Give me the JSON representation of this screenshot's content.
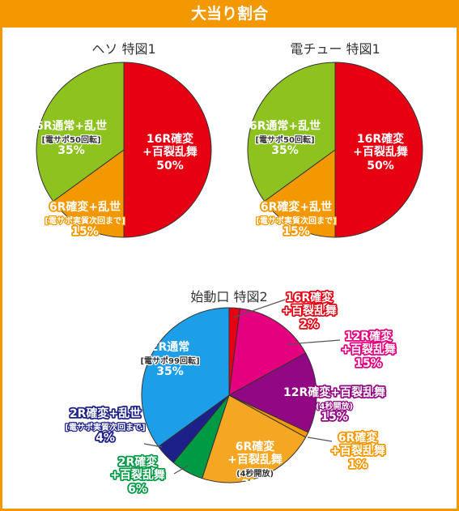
{
  "header": {
    "title": "大当り割合"
  },
  "colors": {
    "frame": "#f39800",
    "red": "#e60012",
    "green": "#8dc21f",
    "orange": "#f39800",
    "blue": "#1d9ee8",
    "pink": "#e4007f",
    "purple": "#920783",
    "lightorange": "#f5a623",
    "darkgreen": "#009944",
    "navy": "#1d2088"
  },
  "chart_data": [
    {
      "type": "pie",
      "title": "ヘソ 特図1",
      "slices": [
        {
          "lines": [
            "16R確変",
            "+百裂乱舞"
          ],
          "pct": "50%",
          "value": 50,
          "color": "#e60012"
        },
        {
          "lines": [
            "6R確変+乱世",
            "[電サポ実質次回まで]"
          ],
          "pct": "15%",
          "value": 15,
          "color": "#f39800"
        },
        {
          "lines": [
            "6R通常+乱世",
            "[電サポ50回転]"
          ],
          "pct": "35%",
          "value": 35,
          "color": "#8dc21f"
        }
      ]
    },
    {
      "type": "pie",
      "title": "電チュー 特図1",
      "slices": [
        {
          "lines": [
            "16R確変",
            "+百裂乱舞"
          ],
          "pct": "50%",
          "value": 50,
          "color": "#e60012"
        },
        {
          "lines": [
            "6R確変+乱世",
            "[電サポ実質次回まで]"
          ],
          "pct": "15%",
          "value": 15,
          "color": "#f39800"
        },
        {
          "lines": [
            "6R通常+乱世",
            "[電サポ50回転]"
          ],
          "pct": "35%",
          "value": 35,
          "color": "#8dc21f"
        }
      ]
    },
    {
      "type": "pie",
      "title": "始動口 特図2",
      "slices": [
        {
          "lines": [
            "16R確変",
            "+百裂乱舞"
          ],
          "pct": "2%",
          "value": 2,
          "color": "#e60012"
        },
        {
          "lines": [
            "12R確変",
            "+百裂乱舞"
          ],
          "pct": "15%",
          "value": 15,
          "color": "#e4007f"
        },
        {
          "lines": [
            "12R確変+百裂乱舞",
            "(4秒開放)"
          ],
          "pct": "15%",
          "value": 15,
          "color": "#920783"
        },
        {
          "lines": [
            "6R確変",
            "+百裂乱舞"
          ],
          "pct": "1%",
          "value": 1,
          "color": "#f39800"
        },
        {
          "lines": [
            "6R確変",
            "+百裂乱舞",
            "(4秒開放)"
          ],
          "pct": "22%",
          "value": 22,
          "color": "#f5a623"
        },
        {
          "lines": [
            "2R確変",
            "+百裂乱舞"
          ],
          "pct": "6%",
          "value": 6,
          "color": "#009944"
        },
        {
          "lines": [
            "2R確変+乱世",
            "[電サポ実質次回まで]"
          ],
          "pct": "4%",
          "value": 4,
          "color": "#1d2088"
        },
        {
          "lines": [
            "2R通常",
            "[電サポ99回転]"
          ],
          "pct": "35%",
          "value": 35,
          "color": "#1d9ee8"
        }
      ]
    }
  ]
}
